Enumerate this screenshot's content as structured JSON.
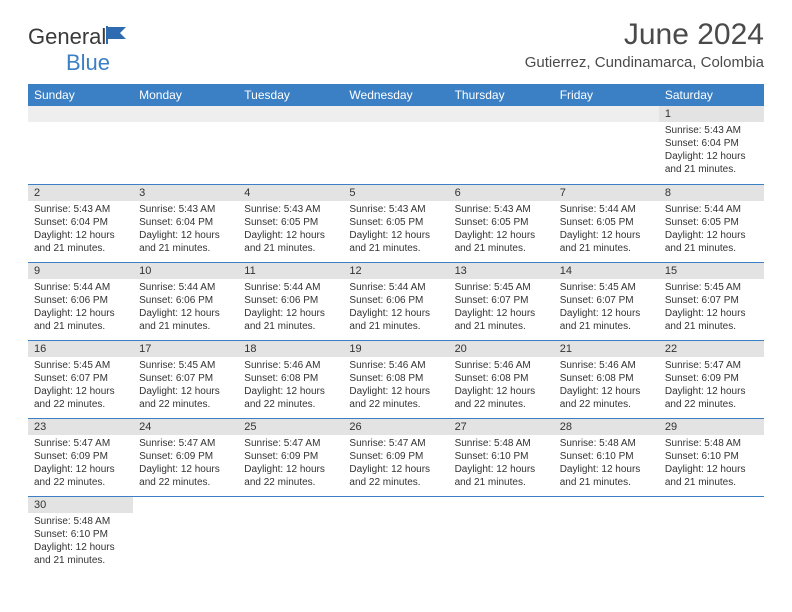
{
  "brand": {
    "textA": "General",
    "textB": "Blue"
  },
  "title": "June 2024",
  "location": "Gutierrez, Cundinamarca, Colombia",
  "colors": {
    "header_bg": "#3b7fc4",
    "header_fg": "#ffffff",
    "daynum_bg": "#e3e3e3",
    "border": "#3b7fc4",
    "text": "#333333"
  },
  "day_labels": [
    "Sunday",
    "Monday",
    "Tuesday",
    "Wednesday",
    "Thursday",
    "Friday",
    "Saturday"
  ],
  "weeks": [
    [
      null,
      null,
      null,
      null,
      null,
      null,
      {
        "n": "1",
        "sr": "5:43 AM",
        "ss": "6:04 PM",
        "dl": "12 hours and 21 minutes."
      }
    ],
    [
      {
        "n": "2",
        "sr": "5:43 AM",
        "ss": "6:04 PM",
        "dl": "12 hours and 21 minutes."
      },
      {
        "n": "3",
        "sr": "5:43 AM",
        "ss": "6:04 PM",
        "dl": "12 hours and 21 minutes."
      },
      {
        "n": "4",
        "sr": "5:43 AM",
        "ss": "6:05 PM",
        "dl": "12 hours and 21 minutes."
      },
      {
        "n": "5",
        "sr": "5:43 AM",
        "ss": "6:05 PM",
        "dl": "12 hours and 21 minutes."
      },
      {
        "n": "6",
        "sr": "5:43 AM",
        "ss": "6:05 PM",
        "dl": "12 hours and 21 minutes."
      },
      {
        "n": "7",
        "sr": "5:44 AM",
        "ss": "6:05 PM",
        "dl": "12 hours and 21 minutes."
      },
      {
        "n": "8",
        "sr": "5:44 AM",
        "ss": "6:05 PM",
        "dl": "12 hours and 21 minutes."
      }
    ],
    [
      {
        "n": "9",
        "sr": "5:44 AM",
        "ss": "6:06 PM",
        "dl": "12 hours and 21 minutes."
      },
      {
        "n": "10",
        "sr": "5:44 AM",
        "ss": "6:06 PM",
        "dl": "12 hours and 21 minutes."
      },
      {
        "n": "11",
        "sr": "5:44 AM",
        "ss": "6:06 PM",
        "dl": "12 hours and 21 minutes."
      },
      {
        "n": "12",
        "sr": "5:44 AM",
        "ss": "6:06 PM",
        "dl": "12 hours and 21 minutes."
      },
      {
        "n": "13",
        "sr": "5:45 AM",
        "ss": "6:07 PM",
        "dl": "12 hours and 21 minutes."
      },
      {
        "n": "14",
        "sr": "5:45 AM",
        "ss": "6:07 PM",
        "dl": "12 hours and 21 minutes."
      },
      {
        "n": "15",
        "sr": "5:45 AM",
        "ss": "6:07 PM",
        "dl": "12 hours and 21 minutes."
      }
    ],
    [
      {
        "n": "16",
        "sr": "5:45 AM",
        "ss": "6:07 PM",
        "dl": "12 hours and 22 minutes."
      },
      {
        "n": "17",
        "sr": "5:45 AM",
        "ss": "6:07 PM",
        "dl": "12 hours and 22 minutes."
      },
      {
        "n": "18",
        "sr": "5:46 AM",
        "ss": "6:08 PM",
        "dl": "12 hours and 22 minutes."
      },
      {
        "n": "19",
        "sr": "5:46 AM",
        "ss": "6:08 PM",
        "dl": "12 hours and 22 minutes."
      },
      {
        "n": "20",
        "sr": "5:46 AM",
        "ss": "6:08 PM",
        "dl": "12 hours and 22 minutes."
      },
      {
        "n": "21",
        "sr": "5:46 AM",
        "ss": "6:08 PM",
        "dl": "12 hours and 22 minutes."
      },
      {
        "n": "22",
        "sr": "5:47 AM",
        "ss": "6:09 PM",
        "dl": "12 hours and 22 minutes."
      }
    ],
    [
      {
        "n": "23",
        "sr": "5:47 AM",
        "ss": "6:09 PM",
        "dl": "12 hours and 22 minutes."
      },
      {
        "n": "24",
        "sr": "5:47 AM",
        "ss": "6:09 PM",
        "dl": "12 hours and 22 minutes."
      },
      {
        "n": "25",
        "sr": "5:47 AM",
        "ss": "6:09 PM",
        "dl": "12 hours and 22 minutes."
      },
      {
        "n": "26",
        "sr": "5:47 AM",
        "ss": "6:09 PM",
        "dl": "12 hours and 22 minutes."
      },
      {
        "n": "27",
        "sr": "5:48 AM",
        "ss": "6:10 PM",
        "dl": "12 hours and 21 minutes."
      },
      {
        "n": "28",
        "sr": "5:48 AM",
        "ss": "6:10 PM",
        "dl": "12 hours and 21 minutes."
      },
      {
        "n": "29",
        "sr": "5:48 AM",
        "ss": "6:10 PM",
        "dl": "12 hours and 21 minutes."
      }
    ],
    [
      {
        "n": "30",
        "sr": "5:48 AM",
        "ss": "6:10 PM",
        "dl": "12 hours and 21 minutes."
      },
      null,
      null,
      null,
      null,
      null,
      null
    ]
  ],
  "labels": {
    "sunrise": "Sunrise:",
    "sunset": "Sunset:",
    "daylight": "Daylight:"
  }
}
